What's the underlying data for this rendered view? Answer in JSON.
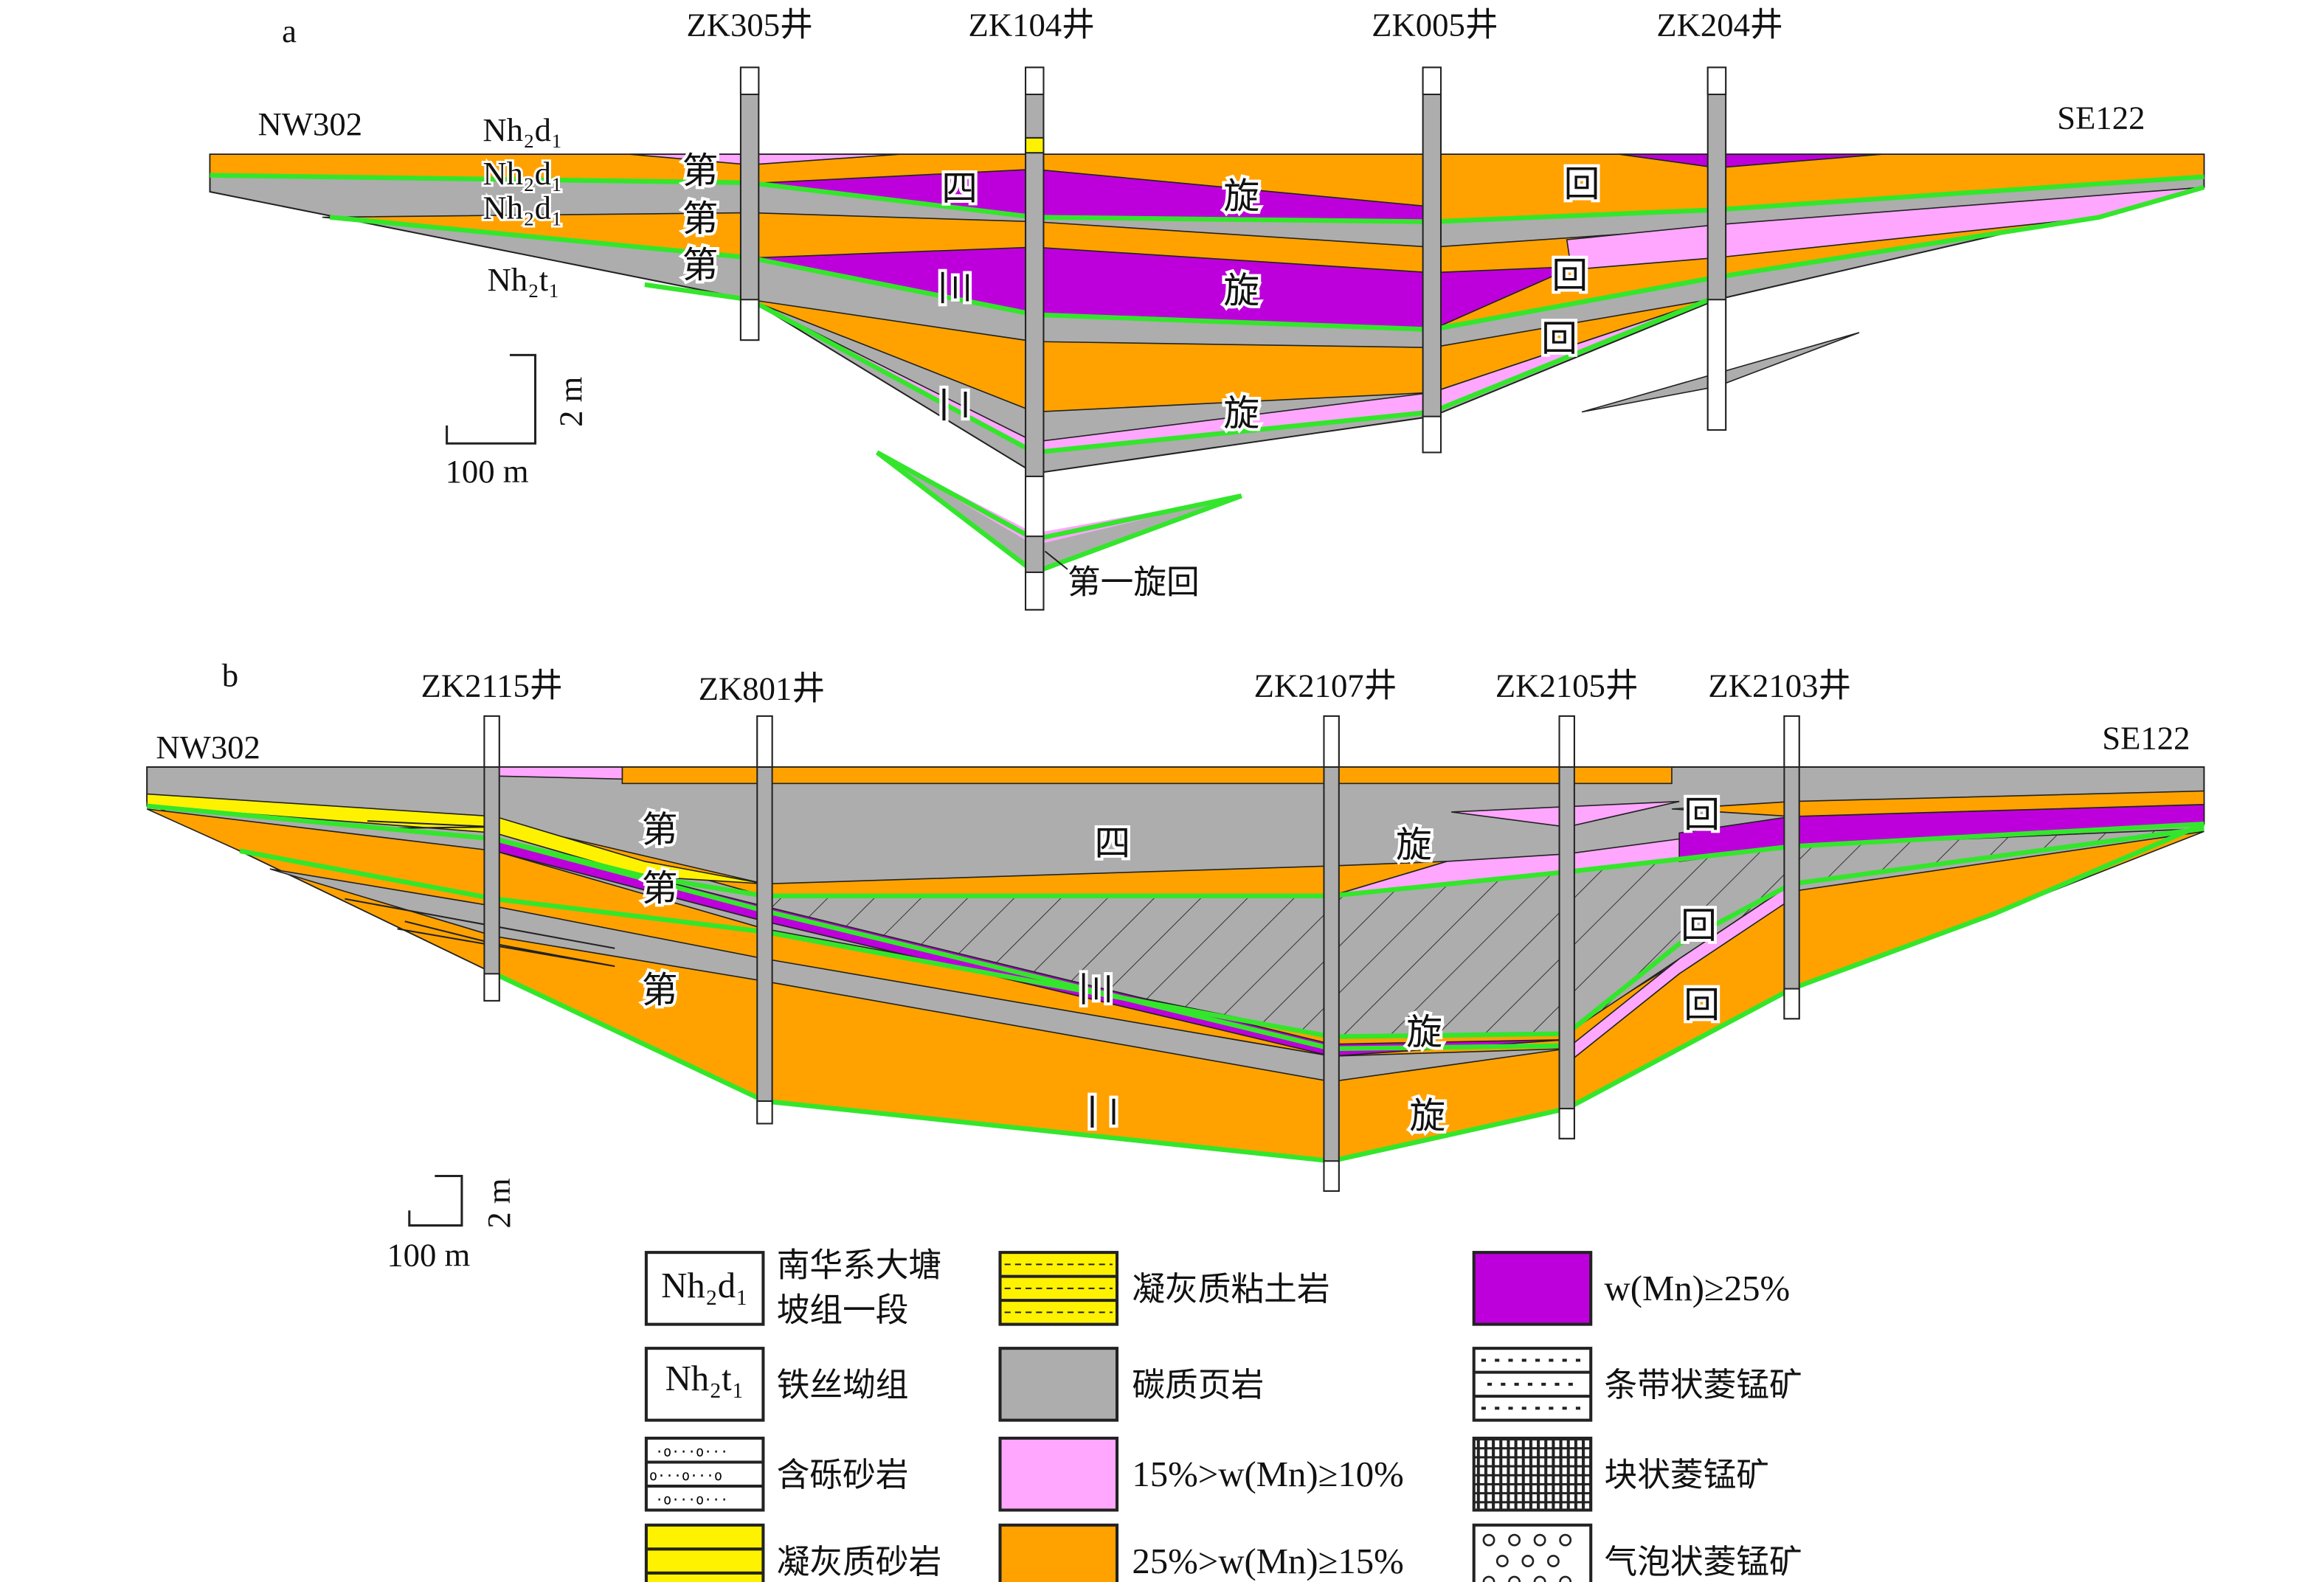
{
  "panel_a": {
    "label": "a",
    "wells": [
      "ZK305井",
      "ZK104井",
      "ZK005井",
      "ZK204井"
    ],
    "ends": {
      "left": "NW302",
      "right": "SE122"
    },
    "formations": [
      "Nh₂d₁",
      "Nh₂d₁",
      "Nh₂d₁",
      "Nh₂t₁"
    ],
    "cycle_chars": {
      "di": "第",
      "si": "四",
      "san": "三",
      "er": "二",
      "xuan": "旋",
      "hui": "回"
    },
    "first_cycle": "第一旋回",
    "scale": {
      "vertical": "2 m",
      "horizontal": "100 m"
    }
  },
  "panel_b": {
    "label": "b",
    "wells": [
      "ZK2115井",
      "ZK801井",
      "ZK2107井",
      "ZK2105井",
      "ZK2103井"
    ],
    "ends": {
      "left": "NW302",
      "right": "SE122"
    },
    "cycle_chars": {
      "di": "第",
      "si": "四",
      "san": "三",
      "er": "二",
      "xuan": "旋",
      "hui": "回"
    },
    "scale": {
      "vertical": "2 m",
      "horizontal": "100 m"
    }
  },
  "legend": [
    {
      "symbol": "Nh₂d₁",
      "label_lines": [
        "南华系大塘",
        "坡组一段"
      ]
    },
    {
      "symbol": "Nh₂t₁",
      "label_lines": [
        "铁丝坳组"
      ]
    },
    {
      "pattern": "pebbly-sandstone",
      "label_lines": [
        "含砾砂岩"
      ]
    },
    {
      "pattern": "tuffaceous-sandstone",
      "label_lines": [
        "凝灰质砂岩"
      ]
    },
    {
      "pattern": "tuffaceous-claystone",
      "label_lines": [
        "凝灰质粘土岩"
      ]
    },
    {
      "pattern": "carbonaceous-shale",
      "label_lines": [
        "碳质页岩"
      ]
    },
    {
      "pattern": "mn-10-15",
      "label_lines": [
        "15%>w(Mn)≥10%"
      ]
    },
    {
      "pattern": "mn-15-25",
      "label_lines": [
        "25%>w(Mn)≥15%"
      ]
    },
    {
      "pattern": "mn-25",
      "label_lines": [
        "w(Mn)≥25%"
      ]
    },
    {
      "pattern": "banded-rhodochrosite",
      "label_lines": [
        "条带状菱锰矿"
      ]
    },
    {
      "pattern": "massive-rhodochrosite",
      "label_lines": [
        "块状菱锰矿"
      ]
    },
    {
      "pattern": "bubble-rhodochrosite",
      "label_lines": [
        "气泡状菱锰矿"
      ]
    }
  ],
  "colors": {
    "grey": "#adadad",
    "orange": "#ffa200",
    "pink": "#ffa6ff",
    "purple": "#bd00db",
    "yellow": "#fff200",
    "green": "#33e62b"
  }
}
